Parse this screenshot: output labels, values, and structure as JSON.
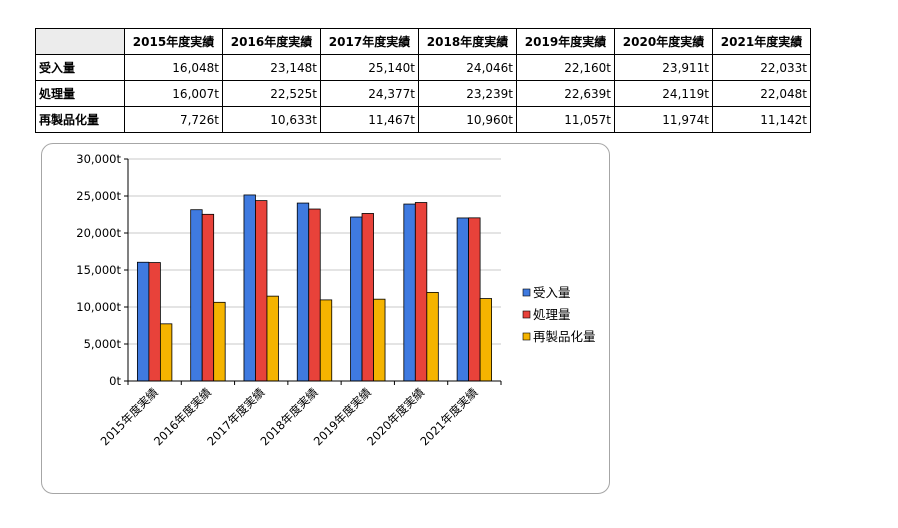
{
  "table": {
    "columns": [
      "2015年度実績",
      "2016年度実績",
      "2017年度実績",
      "2018年度実績",
      "2019年度実績",
      "2020年度実績",
      "2021年度実績"
    ],
    "rows": [
      {
        "label": "受入量",
        "cells": [
          "16,048t",
          "23,148t",
          "25,140t",
          "24,046t",
          "22,160t",
          "23,911t",
          "22,033t"
        ]
      },
      {
        "label": "処理量",
        "cells": [
          "16,007t",
          "22,525t",
          "24,377t",
          "23,239t",
          "22,639t",
          "24,119t",
          "22,048t"
        ]
      },
      {
        "label": "再製品化量",
        "cells": [
          "7,726t",
          "10,633t",
          "11,467t",
          "10,960t",
          "11,057t",
          "11,974t",
          "11,142t"
        ]
      }
    ]
  },
  "chart_data": {
    "type": "bar",
    "categories": [
      "2015年度実績",
      "2016年度実績",
      "2017年度実績",
      "2018年度実績",
      "2019年度実績",
      "2020年度実績",
      "2021年度実績"
    ],
    "series": [
      {
        "name": "受入量",
        "color": "#3f7ae0",
        "values": [
          16048,
          23148,
          25140,
          24046,
          22160,
          23911,
          22033
        ]
      },
      {
        "name": "処理量",
        "color": "#e8423a",
        "values": [
          16007,
          22525,
          24377,
          23239,
          22639,
          24119,
          22048
        ]
      },
      {
        "name": "再製品化量",
        "color": "#f5b400",
        "values": [
          7726,
          10633,
          11467,
          10960,
          11057,
          11974,
          11142
        ]
      }
    ],
    "ylim": [
      0,
      30000
    ],
    "yticks": [
      "0t",
      "5,000t",
      "10,000t",
      "15,000t",
      "20,000t",
      "25,000t",
      "30,000t"
    ],
    "ytick_values": [
      0,
      5000,
      10000,
      15000,
      20000,
      25000,
      30000
    ],
    "grid": true,
    "legend": "right",
    "title": "",
    "xlabel": "",
    "ylabel": ""
  }
}
